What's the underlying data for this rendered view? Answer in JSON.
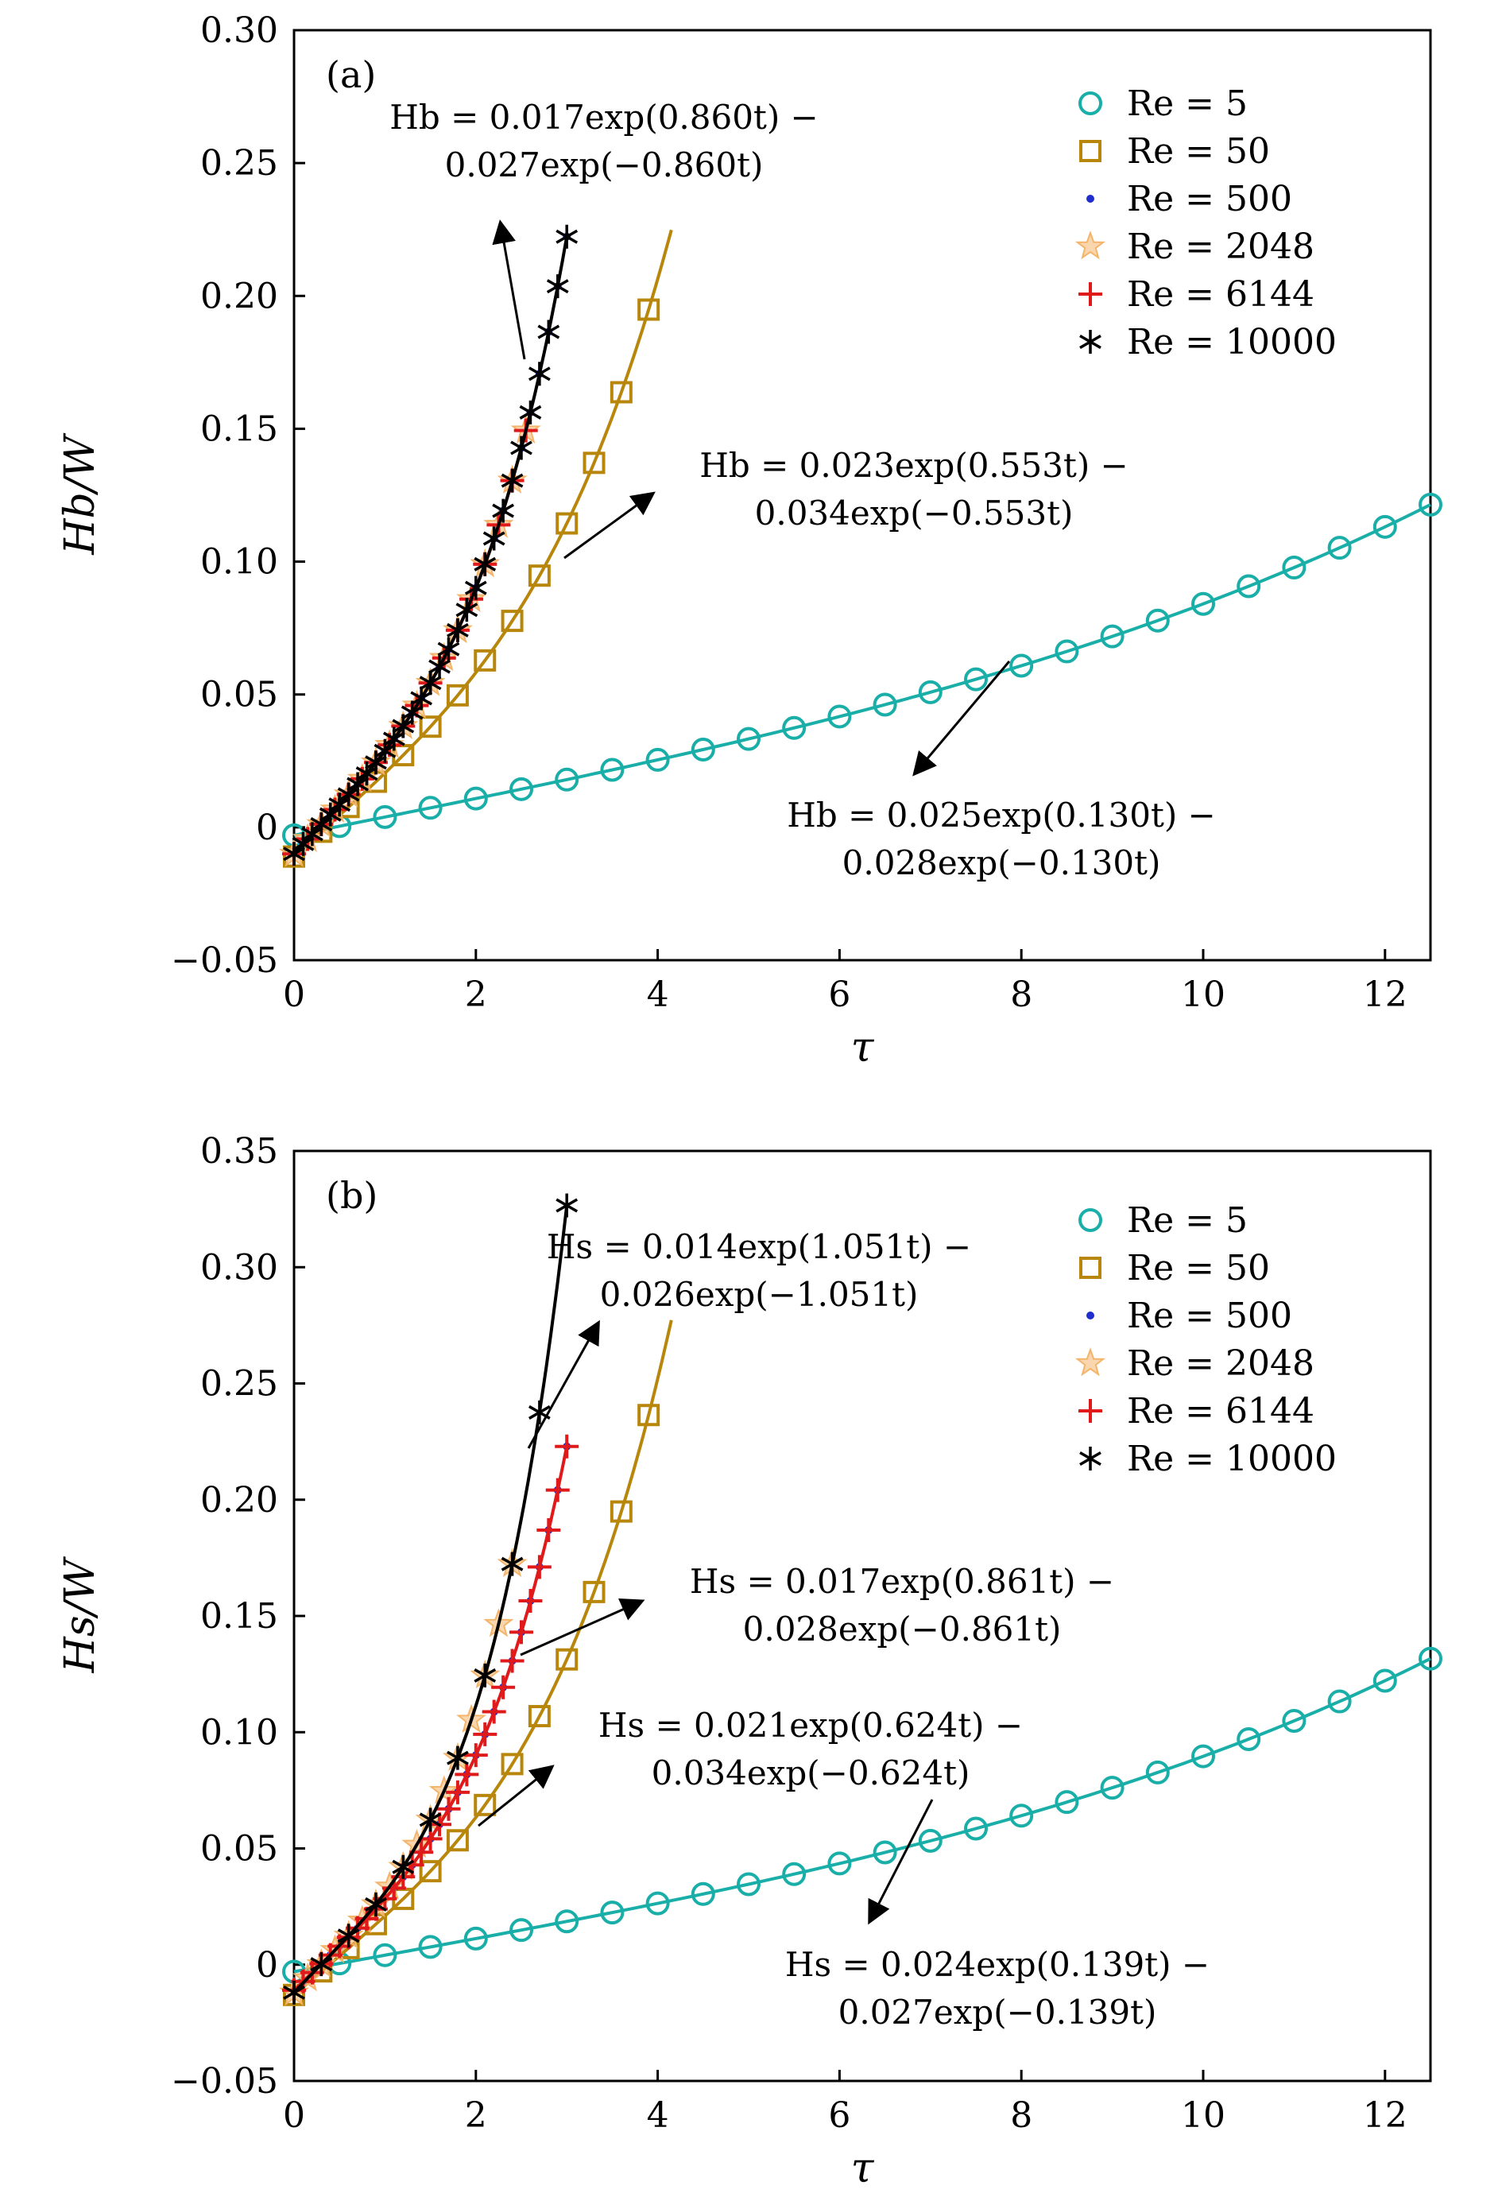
{
  "chart_data": [
    {
      "type": "line",
      "panel_label": "(a)",
      "xlabel": "τ",
      "ylabel": "Hb/W",
      "xlim": [
        0,
        12.5
      ],
      "ylim": [
        -0.05,
        0.3
      ],
      "xticks": [
        "0",
        "2",
        "4",
        "6",
        "8",
        "10",
        "12"
      ],
      "yticks": [
        "−0.05",
        "0",
        "0.05",
        "0.10",
        "0.15",
        "0.20",
        "0.25",
        "0.30"
      ],
      "legend_position": "top-right",
      "series": [
        {
          "name": "Re = 5",
          "marker": "circle",
          "color": "#1aaea8",
          "fit": {
            "A": 0.025,
            "B": 0.028,
            "k": 0.13
          },
          "t_max": 12.5,
          "marker_step": 0.5
        },
        {
          "name": "Re = 50",
          "marker": "square",
          "color": "#b8860b",
          "fit": {
            "A": 0.023,
            "B": 0.034,
            "k": 0.553
          },
          "t_max": 4.15,
          "marker_step": 0.3
        },
        {
          "name": "Re = 500",
          "marker": "dot",
          "color": "#1f2ecc",
          "fit": {
            "A": 0.017,
            "B": 0.027,
            "k": 0.86
          },
          "t_max": 3.0,
          "marker_step": 0.1
        },
        {
          "name": "Re = 2048",
          "marker": "star",
          "color": "#f4b46a",
          "fit": {
            "A": 0.017,
            "B": 0.027,
            "k": 0.86
          },
          "t_max": 2.6,
          "marker_step": 0.15
        },
        {
          "name": "Re = 6144",
          "marker": "plus",
          "color": "#e01a1a",
          "fit": {
            "A": 0.017,
            "B": 0.027,
            "k": 0.86
          },
          "t_max": 2.6,
          "marker_step": 0.15
        },
        {
          "name": "Re = 10000",
          "marker": "asterisk",
          "color": "#000000",
          "fit": {
            "A": 0.017,
            "B": 0.027,
            "k": 0.86
          },
          "t_max": 3.0,
          "marker_step": 0.1
        }
      ],
      "annotations": [
        {
          "line1": "Hb = 0.017exp(0.860t) −",
          "line2": "0.027exp(−0.860t)"
        },
        {
          "line1": "Hb = 0.023exp(0.553t) −",
          "line2": "0.034exp(−0.553t)"
        },
        {
          "line1": "Hb = 0.025exp(0.130t) −",
          "line2": "0.028exp(−0.130t)"
        }
      ]
    },
    {
      "type": "line",
      "panel_label": "(b)",
      "xlabel": "τ",
      "ylabel": "Hs/W",
      "xlim": [
        0,
        12.5
      ],
      "ylim": [
        -0.05,
        0.35
      ],
      "xticks": [
        "0",
        "2",
        "4",
        "6",
        "8",
        "10",
        "12"
      ],
      "yticks": [
        "−0.05",
        "0",
        "0.05",
        "0.10",
        "0.15",
        "0.20",
        "0.25",
        "0.30",
        "0.35"
      ],
      "legend_position": "top-right",
      "series": [
        {
          "name": "Re = 5",
          "marker": "circle",
          "color": "#1aaea8",
          "fit": {
            "A": 0.024,
            "B": 0.027,
            "k": 0.139
          },
          "t_max": 12.5,
          "marker_step": 0.5
        },
        {
          "name": "Re = 50",
          "marker": "square",
          "color": "#b8860b",
          "fit": {
            "A": 0.021,
            "B": 0.034,
            "k": 0.624
          },
          "t_max": 4.15,
          "marker_step": 0.3
        },
        {
          "name": "Re = 500",
          "marker": "dot",
          "color": "#1f2ecc",
          "fit": {
            "A": 0.017,
            "B": 0.028,
            "k": 0.861
          },
          "t_max": 3.0,
          "marker_step": 0.1
        },
        {
          "name": "Re = 2048",
          "marker": "star",
          "color": "#f4b46a",
          "fit": {
            "A": 0.014,
            "B": 0.026,
            "k": 1.051
          },
          "t_max": 2.5,
          "marker_step": 0.15
        },
        {
          "name": "Re = 6144",
          "marker": "plus",
          "color": "#e01a1a",
          "fit": {
            "A": 0.017,
            "B": 0.028,
            "k": 0.861
          },
          "t_max": 3.0,
          "marker_step": 0.1
        },
        {
          "name": "Re = 10000",
          "marker": "asterisk",
          "color": "#000000",
          "fit": {
            "A": 0.014,
            "B": 0.026,
            "k": 1.051
          },
          "t_max": 3.0,
          "marker_step": 0.3
        }
      ],
      "annotations": [
        {
          "line1": "Hs = 0.014exp(1.051t) −",
          "line2": "0.026exp(−1.051t)"
        },
        {
          "line1": "Hs = 0.017exp(0.861t) −",
          "line2": "0.028exp(−0.861t)"
        },
        {
          "line1": "Hs = 0.021exp(0.624t) −",
          "line2": "0.034exp(−0.624t)"
        },
        {
          "line1": "Hs = 0.024exp(0.139t) −",
          "line2": "0.027exp(−0.139t)"
        }
      ]
    }
  ]
}
